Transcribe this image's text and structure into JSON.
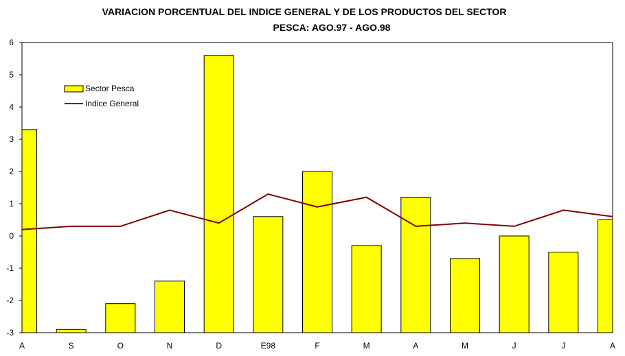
{
  "chart_data": {
    "type": "bar",
    "title_line1": "VARIACION PORCENTUAL DEL INDICE GENERAL Y DE LOS PRODUCTOS DEL SECTOR",
    "title_line2": "PESCA: AGO.97 - AGO.98",
    "categories": [
      "A",
      "S",
      "O",
      "N",
      "D",
      "E98",
      "F",
      "M",
      "A",
      "M",
      "J",
      "J",
      "A"
    ],
    "ylim": [
      -3,
      6
    ],
    "yticks": [
      6,
      5,
      4,
      3,
      2,
      1,
      0,
      -1,
      -2,
      -3
    ],
    "series": [
      {
        "name": "Sector Pesca",
        "kind": "bar",
        "color": "#ffff00",
        "values": [
          3.3,
          -2.9,
          -2.1,
          -1.4,
          5.6,
          0.6,
          2.0,
          -0.3,
          1.2,
          -0.7,
          0.0,
          -0.5,
          0.5
        ]
      },
      {
        "name": "Indice General",
        "kind": "line",
        "color": "#800000",
        "values": [
          0.2,
          0.3,
          0.3,
          0.8,
          0.4,
          1.3,
          0.9,
          1.2,
          0.3,
          0.4,
          0.3,
          0.8,
          0.6
        ]
      }
    ],
    "legend_position": "upper-left",
    "grid": false
  }
}
